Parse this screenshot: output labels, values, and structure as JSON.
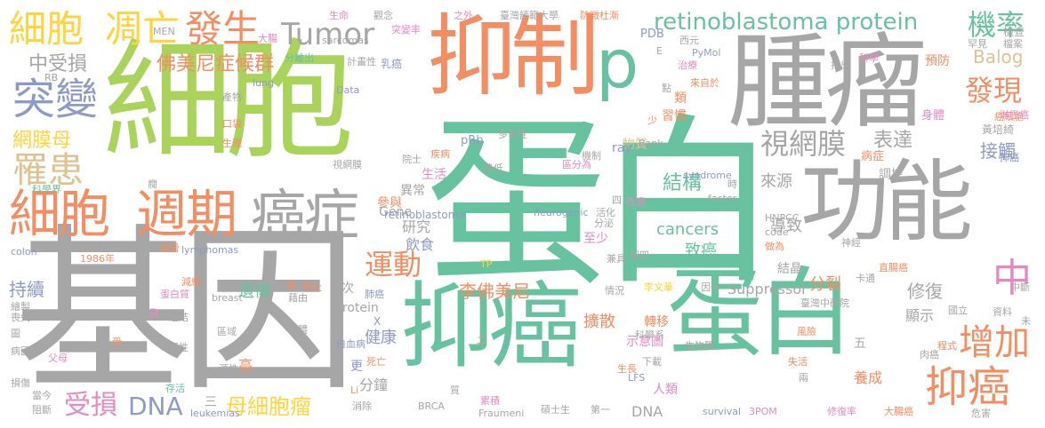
{
  "palette": {
    "gray": "#a6a6a6",
    "green": "#67c29f",
    "lime": "#a9d35a",
    "orange": "#f58d62",
    "purple": "#8e9ac8",
    "pink": "#e28bc3",
    "yellow": "#ffd43c",
    "tan": "#e0c290"
  },
  "words": [
    {
      "text": "蛋白",
      "color": "green"
    },
    {
      "text": "基因",
      "color": "gray"
    },
    {
      "text": "細胞",
      "color": "lime"
    },
    {
      "text": "腫瘤",
      "color": "gray"
    },
    {
      "text": "抑制",
      "color": "orange"
    },
    {
      "text": "抑癌",
      "color": "green"
    },
    {
      "text": "蛋白",
      "color": "green"
    },
    {
      "text": "功能",
      "color": "gray"
    },
    {
      "text": "p",
      "color": "green"
    },
    {
      "text": "癌症",
      "color": "gray"
    },
    {
      "text": "細胞",
      "color": "orange"
    },
    {
      "text": "週期",
      "color": "orange"
    },
    {
      "text": "細胞",
      "color": "yellow"
    },
    {
      "text": "凋亡",
      "color": "yellow"
    },
    {
      "text": "發生",
      "color": "orange"
    },
    {
      "text": "Tumor",
      "color": "gray"
    },
    {
      "text": "突變",
      "color": "purple"
    },
    {
      "text": "罹患",
      "color": "tan"
    },
    {
      "text": "機率",
      "color": "green"
    },
    {
      "text": "發現",
      "color": "orange"
    },
    {
      "text": "retinoblastoma protein",
      "color": "green"
    },
    {
      "text": "視網膜",
      "color": "gray"
    },
    {
      "text": "中",
      "color": "pink"
    },
    {
      "text": "增加",
      "color": "orange"
    },
    {
      "text": "抑癌",
      "color": "orange"
    },
    {
      "text": "運動",
      "color": "orange"
    },
    {
      "text": "網膜母",
      "color": "yellow"
    },
    {
      "text": "中受損",
      "color": "gray"
    },
    {
      "text": "佛美尼症候群",
      "color": "orange"
    },
    {
      "text": "結構",
      "color": "green"
    },
    {
      "text": "cancers",
      "color": "green"
    },
    {
      "text": "致癌",
      "color": "green"
    },
    {
      "text": "受損",
      "color": "pink"
    },
    {
      "text": "DNA",
      "color": "purple"
    },
    {
      "text": "母細胞瘤",
      "color": "yellow"
    },
    {
      "text": "表達",
      "color": "gray"
    },
    {
      "text": "接觸",
      "color": "purple"
    },
    {
      "text": "黃培綺",
      "color": "gray"
    },
    {
      "text": "來源",
      "color": "gray"
    },
    {
      "text": "導致",
      "color": "gray"
    },
    {
      "text": "修復",
      "color": "gray"
    },
    {
      "text": "李佛美尼",
      "color": "orange"
    },
    {
      "text": "持續",
      "color": "purple"
    },
    {
      "text": "分裂",
      "color": "orange"
    },
    {
      "text": "Suppressor",
      "color": "gray"
    },
    {
      "text": "Balog",
      "color": "tan"
    },
    {
      "text": "檢查",
      "color": "gray"
    },
    {
      "text": "遺傳",
      "color": "green"
    },
    {
      "text": "健康",
      "color": "purple"
    },
    {
      "text": "研究",
      "color": "gray"
    },
    {
      "text": "飲食",
      "color": "purple"
    },
    {
      "text": "異常",
      "color": "gray"
    },
    {
      "text": "生活",
      "color": "pink"
    },
    {
      "text": "參與",
      "color": "orange"
    },
    {
      "text": "PDB",
      "color": "purple"
    },
    {
      "text": "預防",
      "color": "orange"
    },
    {
      "text": "protein",
      "color": "gray"
    },
    {
      "text": "Gene",
      "color": "gray"
    },
    {
      "text": "DNA",
      "color": "gray"
    },
    {
      "text": "分鐘",
      "color": "gray"
    },
    {
      "text": "養成",
      "color": "orange"
    },
    {
      "text": "轉移",
      "color": "orange"
    },
    {
      "text": "顯示",
      "color": "gray"
    },
    {
      "text": "擴散",
      "color": "orange"
    },
    {
      "text": "示意圖",
      "color": "pink"
    },
    {
      "text": "人類",
      "color": "pink"
    },
    {
      "text": "物質",
      "color": "tan"
    },
    {
      "text": "習慣",
      "color": "orange"
    },
    {
      "text": "類",
      "color": "orange"
    },
    {
      "text": "身體",
      "color": "pink"
    },
    {
      "text": "病症",
      "color": "orange"
    },
    {
      "text": "抑癌",
      "color": "gray"
    },
    {
      "text": "調控",
      "color": "gray"
    },
    {
      "text": "結晶",
      "color": "gray"
    },
    {
      "text": "至少",
      "color": "pink"
    },
    {
      "text": "ray",
      "color": "purple"
    },
    {
      "text": "pRb",
      "color": "purple"
    },
    {
      "text": "retinoblastoma",
      "color": "purple"
    },
    {
      "text": "neurogenic",
      "color": "purple"
    },
    {
      "text": "factor",
      "color": "gray"
    },
    {
      "text": "syndrome",
      "color": "purple"
    },
    {
      "text": "HNPCC",
      "color": "gray"
    },
    {
      "text": "code",
      "color": "gray"
    },
    {
      "text": "做為",
      "color": "orange"
    },
    {
      "text": "神經",
      "color": "gray"
    },
    {
      "text": "卡通",
      "color": "gray"
    },
    {
      "text": "直腸癌",
      "color": "orange"
    },
    {
      "text": "因子",
      "color": "gray"
    },
    {
      "text": "李文華",
      "color": "yellow"
    },
    {
      "text": "臺灣中研院",
      "color": "gray"
    },
    {
      "text": "大腸",
      "color": "pink"
    },
    {
      "text": "生命",
      "color": "pink"
    },
    {
      "text": "觀念",
      "color": "gray"
    },
    {
      "text": "突變率",
      "color": "pink"
    },
    {
      "text": "之外",
      "color": "pink"
    },
    {
      "text": "臺灣師範大學",
      "color": "gray"
    },
    {
      "text": "防微杜漸",
      "color": "orange"
    },
    {
      "text": "罕見",
      "color": "gray"
    },
    {
      "text": "檔案",
      "color": "gray"
    },
    {
      "text": "MEN",
      "color": "gray"
    },
    {
      "text": "sarcomas",
      "color": "gray"
    },
    {
      "text": "分離出",
      "color": "green"
    },
    {
      "text": "計畫性",
      "color": "gray"
    },
    {
      "text": "乳癌",
      "color": "purple"
    },
    {
      "text": "lung",
      "color": "purple"
    },
    {
      "text": "Data",
      "color": "purple"
    },
    {
      "text": "科學",
      "color": "pink"
    },
    {
      "text": "治療",
      "color": "pink"
    },
    {
      "text": "來自於",
      "color": "orange"
    },
    {
      "text": "點",
      "color": "gray"
    },
    {
      "text": "PyMol",
      "color": "purple"
    },
    {
      "text": "E",
      "color": "gray"
    },
    {
      "text": "西元",
      "color": "gray"
    },
    {
      "text": "指出",
      "color": "gray"
    },
    {
      "text": "癌細胞",
      "color": "orange"
    },
    {
      "text": "淋巴癌",
      "color": "pink"
    },
    {
      "text": "抑癌",
      "color": "purple"
    },
    {
      "text": "RB",
      "color": "gray"
    },
    {
      "text": "產物",
      "color": "gray"
    },
    {
      "text": "口袋",
      "color": "orange"
    },
    {
      "text": "生理",
      "color": "orange"
    },
    {
      "text": "視網膜",
      "color": "gray"
    },
    {
      "text": "院士",
      "color": "gray"
    },
    {
      "text": "降低",
      "color": "gray"
    },
    {
      "text": "多發性",
      "color": "gray"
    },
    {
      "text": "疾病",
      "color": "orange"
    },
    {
      "text": "機制",
      "color": "gray"
    },
    {
      "text": "區分為",
      "color": "pink"
    },
    {
      "text": "Bank",
      "color": "gray"
    },
    {
      "text": "少",
      "color": "orange"
    },
    {
      "text": "時",
      "color": "gray"
    },
    {
      "text": "科學界",
      "color": "green"
    },
    {
      "text": "癇",
      "color": "gray"
    },
    {
      "text": "活化",
      "color": "gray"
    },
    {
      "text": "四",
      "color": "gray"
    },
    {
      "text": "改變",
      "color": "pink"
    },
    {
      "text": "分泌",
      "color": "gray"
    },
    {
      "text": "兼具",
      "color": "gray"
    },
    {
      "text": "圖四",
      "color": "gray"
    },
    {
      "text": "TP",
      "color": "yellow"
    },
    {
      "text": "colon",
      "color": "purple"
    },
    {
      "text": "1986年",
      "color": "orange"
    },
    {
      "text": "威脅",
      "color": "orange"
    },
    {
      "text": "lymphomas",
      "color": "purple"
    },
    {
      "text": "減緩",
      "color": "orange"
    },
    {
      "text": "蛋白質",
      "color": "pink"
    },
    {
      "text": "繪製",
      "color": "gray"
    },
    {
      "text": "喪失",
      "color": "gray"
    },
    {
      "text": "連結",
      "color": "gray"
    },
    {
      "text": "R",
      "color": "pink"
    },
    {
      "text": "breast",
      "color": "gray"
    },
    {
      "text": "群",
      "color": "orange"
    },
    {
      "text": "停止",
      "color": "orange"
    },
    {
      "text": "藉由",
      "color": "gray"
    },
    {
      "text": "次",
      "color": "gray"
    },
    {
      "text": "肺癌",
      "color": "purple"
    },
    {
      "text": "X",
      "color": "purple"
    },
    {
      "text": "情況",
      "color": "gray"
    },
    {
      "text": "自體",
      "color": "gray"
    },
    {
      "text": "受",
      "color": "orange"
    },
    {
      "text": "區域",
      "color": "gray"
    },
    {
      "text": "顯性",
      "color": "gray"
    },
    {
      "text": "圖",
      "color": "gray"
    },
    {
      "text": "病因",
      "color": "gray"
    },
    {
      "text": "父母",
      "color": "pink"
    },
    {
      "text": "損傷",
      "color": "gray"
    },
    {
      "text": "當今",
      "color": "gray"
    },
    {
      "text": "存活",
      "color": "green"
    },
    {
      "text": "阻斷",
      "color": "gray"
    },
    {
      "text": "源性",
      "color": "gray"
    },
    {
      "text": "高",
      "color": "orange"
    },
    {
      "text": "三",
      "color": "gray"
    },
    {
      "text": "leukemias",
      "color": "purple"
    },
    {
      "text": "白血病",
      "color": "purple"
    },
    {
      "text": "更",
      "color": "purple"
    },
    {
      "text": "死亡",
      "color": "orange"
    },
    {
      "text": "Li",
      "color": "orange"
    },
    {
      "text": "消除",
      "color": "gray"
    },
    {
      "text": "二",
      "color": "orange"
    },
    {
      "text": "質",
      "color": "gray"
    },
    {
      "text": "BRCA",
      "color": "gray"
    },
    {
      "text": "累積",
      "color": "pink"
    },
    {
      "text": "Fraumeni",
      "color": "gray"
    },
    {
      "text": "碩士生",
      "color": "gray"
    },
    {
      "text": "第一",
      "color": "gray"
    },
    {
      "text": "生長",
      "color": "orange"
    },
    {
      "text": "LFS",
      "color": "purple"
    },
    {
      "text": "下載",
      "color": "gray"
    },
    {
      "text": "科學系",
      "color": "gray"
    },
    {
      "text": "生物體",
      "color": "gray"
    },
    {
      "text": "survival",
      "color": "purple"
    },
    {
      "text": "3POM",
      "color": "pink"
    },
    {
      "text": "五",
      "color": "gray"
    },
    {
      "text": "風險",
      "color": "orange"
    },
    {
      "text": "失活",
      "color": "orange"
    },
    {
      "text": "兩",
      "color": "gray"
    },
    {
      "text": "修復率",
      "color": "pink"
    },
    {
      "text": "大腸癌",
      "color": "orange"
    },
    {
      "text": "肉癌",
      "color": "gray"
    },
    {
      "text": "程式",
      "color": "orange"
    },
    {
      "text": "國立",
      "color": "gray"
    },
    {
      "text": "資料",
      "color": "gray"
    },
    {
      "text": "中斷",
      "color": "gray"
    },
    {
      "text": "未",
      "color": "gray"
    },
    {
      "text": "危害",
      "color": "gray"
    }
  ]
}
